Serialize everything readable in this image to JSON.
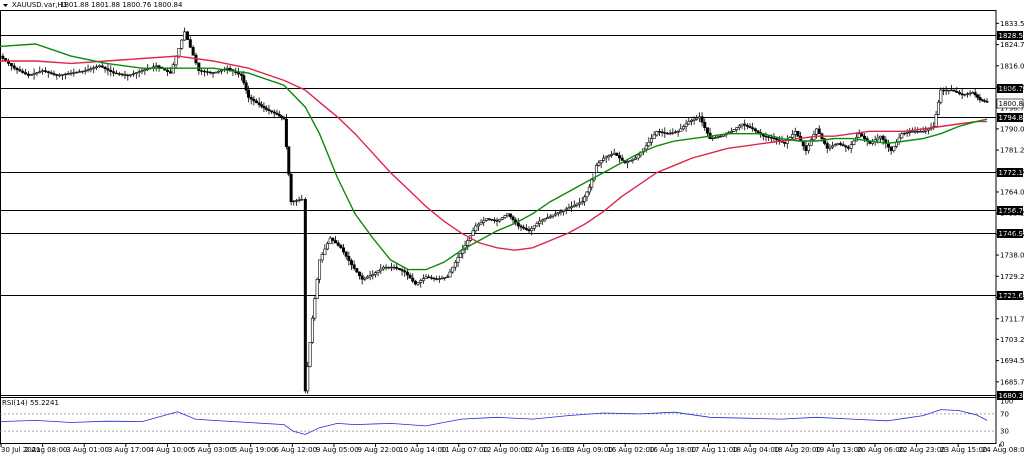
{
  "header": {
    "symbol_line": "XAUUSD.var,H1",
    "ohlc": "1801.88 1801.88 1800.76 1800.84"
  },
  "colors": {
    "candle": "#000000",
    "ma_green": "#0a8a0a",
    "ma_red": "#e0264a",
    "level_line": "#000000",
    "rsi_line": "#1f2bd8",
    "label_box": "#000000"
  },
  "chart_data": {
    "type": "candlestick",
    "title": "",
    "x_ticks": [
      "30 Jul 2021",
      "2 Aug 08:00",
      "3 Aug 01:00",
      "3 Aug 17:00",
      "4 Aug 10:00",
      "5 Aug 03:00",
      "5 Aug 19:00",
      "6 Aug 12:00",
      "9 Aug 05:00",
      "9 Aug 22:00",
      "10 Aug 14:00",
      "11 Aug 07:00",
      "12 Aug 00:00",
      "12 Aug 16:00",
      "13 Aug 09:00",
      "16 Aug 02:00",
      "16 Aug 18:00",
      "17 Aug 11:00",
      "18 Aug 04:00",
      "18 Aug 20:00",
      "19 Aug 13:00",
      "20 Aug 06:00",
      "22 Aug 23:00",
      "23 Aug 15:00",
      "24 Aug 08:00"
    ],
    "y_ticks": [
      1833.5,
      1824.75,
      1816.0,
      1807.25,
      1798.7,
      1790.0,
      1781.25,
      1772.5,
      1764.0,
      1755.25,
      1746.5,
      1738.0,
      1729.25,
      1720.5,
      1711.75,
      1703.25,
      1694.5,
      1685.75
    ],
    "y_tick_labels": [
      "1833.50",
      "1824.75",
      "1816.00",
      "1807.25",
      "1798.70",
      "1790.00",
      "1781.25",
      "1772.50",
      "1764.00",
      "1755.25",
      "1746.50",
      "1738.00",
      "1729.25",
      "1720.50",
      "1711.75",
      "1703.25",
      "1694.50",
      "1685.75"
    ],
    "ylim": [
      1679.5,
      1839.0
    ],
    "levels": [
      {
        "value": 1828.53,
        "label": "1828.53"
      },
      {
        "value": 1806.73,
        "label": "1806.73"
      },
      {
        "value": 1794.83,
        "label": "1794.83"
      },
      {
        "value": 1772.1,
        "label": "1772.10"
      },
      {
        "value": 1756.76,
        "label": "1756.76"
      },
      {
        "value": 1746.98,
        "label": "1746.98"
      },
      {
        "value": 1721.6,
        "label": "1721.60"
      },
      {
        "value": 1680.37,
        "label": "1680.37"
      }
    ],
    "current_price": {
      "value": 1800.84,
      "label": "1800.84"
    },
    "series": [
      {
        "kind": "close",
        "points": [
          [
            0,
            1820
          ],
          [
            8,
            1815
          ],
          [
            16,
            1812
          ],
          [
            24,
            1814
          ],
          [
            32,
            1812
          ],
          [
            40,
            1813
          ],
          [
            48,
            1814
          ],
          [
            56,
            1816
          ],
          [
            64,
            1813
          ],
          [
            72,
            1812
          ],
          [
            80,
            1814
          ],
          [
            88,
            1816
          ],
          [
            96,
            1813
          ],
          [
            104,
            1830
          ],
          [
            112,
            1814
          ],
          [
            120,
            1813
          ],
          [
            128,
            1815
          ],
          [
            136,
            1812
          ],
          [
            140,
            1803
          ],
          [
            146,
            1800
          ],
          [
            150,
            1798
          ],
          [
            156,
            1796
          ],
          [
            160,
            1794
          ],
          [
            164,
            1760
          ],
          [
            170,
            1761
          ],
          [
            172,
            1682
          ],
          [
            176,
            1712
          ],
          [
            180,
            1736
          ],
          [
            186,
            1745
          ],
          [
            192,
            1741
          ],
          [
            198,
            1734
          ],
          [
            204,
            1728
          ],
          [
            210,
            1730
          ],
          [
            216,
            1733
          ],
          [
            222,
            1733
          ],
          [
            228,
            1731
          ],
          [
            234,
            1726
          ],
          [
            240,
            1729
          ],
          [
            246,
            1728
          ],
          [
            252,
            1729
          ],
          [
            258,
            1737
          ],
          [
            262,
            1742
          ],
          [
            268,
            1750
          ],
          [
            274,
            1753
          ],
          [
            280,
            1752
          ],
          [
            286,
            1755
          ],
          [
            292,
            1750
          ],
          [
            298,
            1748
          ],
          [
            304,
            1752
          ],
          [
            310,
            1754
          ],
          [
            316,
            1756
          ],
          [
            322,
            1758
          ],
          [
            328,
            1760
          ],
          [
            332,
            1766
          ],
          [
            336,
            1775
          ],
          [
            340,
            1778
          ],
          [
            346,
            1780
          ],
          [
            352,
            1776
          ],
          [
            358,
            1778
          ],
          [
            364,
            1783
          ],
          [
            370,
            1789
          ],
          [
            376,
            1788
          ],
          [
            382,
            1789
          ],
          [
            388,
            1793
          ],
          [
            394,
            1795
          ],
          [
            400,
            1786
          ],
          [
            406,
            1787
          ],
          [
            412,
            1789
          ],
          [
            418,
            1792
          ],
          [
            424,
            1790
          ],
          [
            430,
            1787
          ],
          [
            436,
            1786
          ],
          [
            442,
            1784
          ],
          [
            448,
            1789
          ],
          [
            454,
            1781
          ],
          [
            460,
            1790
          ],
          [
            466,
            1782
          ],
          [
            472,
            1784
          ],
          [
            478,
            1782
          ],
          [
            484,
            1788
          ],
          [
            490,
            1784
          ],
          [
            496,
            1787
          ],
          [
            502,
            1781
          ],
          [
            508,
            1788
          ],
          [
            514,
            1789
          ],
          [
            520,
            1789
          ],
          [
            526,
            1791
          ],
          [
            530,
            1806
          ],
          [
            536,
            1806
          ],
          [
            542,
            1804
          ],
          [
            548,
            1805
          ],
          [
            552,
            1802
          ],
          [
            556,
            1801
          ]
        ]
      },
      {
        "kind": "ma_fast",
        "points": [
          [
            0,
            1824
          ],
          [
            20,
            1825
          ],
          [
            40,
            1820
          ],
          [
            60,
            1817
          ],
          [
            80,
            1815
          ],
          [
            100,
            1815
          ],
          [
            120,
            1815
          ],
          [
            140,
            1813
          ],
          [
            160,
            1808
          ],
          [
            172,
            1799
          ],
          [
            180,
            1788
          ],
          [
            190,
            1770
          ],
          [
            200,
            1755
          ],
          [
            210,
            1745
          ],
          [
            220,
            1736
          ],
          [
            230,
            1732
          ],
          [
            240,
            1732
          ],
          [
            250,
            1735
          ],
          [
            260,
            1740
          ],
          [
            270,
            1744
          ],
          [
            280,
            1748
          ],
          [
            290,
            1751
          ],
          [
            300,
            1755
          ],
          [
            310,
            1760
          ],
          [
            320,
            1764
          ],
          [
            330,
            1768
          ],
          [
            340,
            1772
          ],
          [
            350,
            1776
          ],
          [
            360,
            1780
          ],
          [
            370,
            1783
          ],
          [
            380,
            1785
          ],
          [
            390,
            1786
          ],
          [
            400,
            1787
          ],
          [
            410,
            1788
          ],
          [
            420,
            1788
          ],
          [
            430,
            1788
          ],
          [
            440,
            1786
          ],
          [
            450,
            1785
          ],
          [
            460,
            1785
          ],
          [
            470,
            1786
          ],
          [
            480,
            1786
          ],
          [
            490,
            1785
          ],
          [
            500,
            1784
          ],
          [
            510,
            1785
          ],
          [
            520,
            1786
          ],
          [
            530,
            1788
          ],
          [
            540,
            1791
          ],
          [
            550,
            1793
          ],
          [
            556,
            1794
          ]
        ]
      },
      {
        "kind": "ma_slow",
        "points": [
          [
            0,
            1818
          ],
          [
            20,
            1818
          ],
          [
            40,
            1817
          ],
          [
            60,
            1818
          ],
          [
            80,
            1819
          ],
          [
            100,
            1820
          ],
          [
            120,
            1818
          ],
          [
            140,
            1815
          ],
          [
            160,
            1810
          ],
          [
            172,
            1806
          ],
          [
            180,
            1801
          ],
          [
            190,
            1795
          ],
          [
            200,
            1788
          ],
          [
            210,
            1780
          ],
          [
            220,
            1772
          ],
          [
            230,
            1765
          ],
          [
            240,
            1758
          ],
          [
            250,
            1752
          ],
          [
            260,
            1747
          ],
          [
            270,
            1743
          ],
          [
            280,
            1741
          ],
          [
            290,
            1740
          ],
          [
            300,
            1741
          ],
          [
            310,
            1744
          ],
          [
            320,
            1747
          ],
          [
            330,
            1751
          ],
          [
            340,
            1756
          ],
          [
            350,
            1762
          ],
          [
            360,
            1767
          ],
          [
            370,
            1772
          ],
          [
            380,
            1775
          ],
          [
            390,
            1778
          ],
          [
            400,
            1780
          ],
          [
            410,
            1782
          ],
          [
            420,
            1783
          ],
          [
            430,
            1784
          ],
          [
            440,
            1785
          ],
          [
            450,
            1786
          ],
          [
            460,
            1787
          ],
          [
            470,
            1787
          ],
          [
            480,
            1788
          ],
          [
            490,
            1789
          ],
          [
            500,
            1789
          ],
          [
            510,
            1789
          ],
          [
            520,
            1790
          ],
          [
            530,
            1791
          ],
          [
            540,
            1792
          ],
          [
            550,
            1793
          ],
          [
            556,
            1793
          ]
        ]
      }
    ],
    "rsi": {
      "label": "RSI(14) 55.2241",
      "y_ticks": [
        100,
        70,
        30,
        0
      ],
      "levels": [
        70,
        30
      ],
      "points": [
        [
          0,
          52
        ],
        [
          20,
          55
        ],
        [
          40,
          50
        ],
        [
          60,
          53
        ],
        [
          80,
          52
        ],
        [
          100,
          75
        ],
        [
          110,
          58
        ],
        [
          120,
          55
        ],
        [
          140,
          50
        ],
        [
          160,
          45
        ],
        [
          165,
          30
        ],
        [
          172,
          22
        ],
        [
          180,
          38
        ],
        [
          190,
          48
        ],
        [
          200,
          45
        ],
        [
          220,
          48
        ],
        [
          240,
          42
        ],
        [
          260,
          58
        ],
        [
          280,
          62
        ],
        [
          300,
          58
        ],
        [
          320,
          66
        ],
        [
          340,
          72
        ],
        [
          360,
          70
        ],
        [
          380,
          74
        ],
        [
          400,
          62
        ],
        [
          420,
          60
        ],
        [
          440,
          58
        ],
        [
          460,
          62
        ],
        [
          480,
          58
        ],
        [
          500,
          54
        ],
        [
          510,
          60
        ],
        [
          520,
          66
        ],
        [
          530,
          80
        ],
        [
          540,
          78
        ],
        [
          550,
          68
        ],
        [
          556,
          55
        ]
      ]
    }
  }
}
